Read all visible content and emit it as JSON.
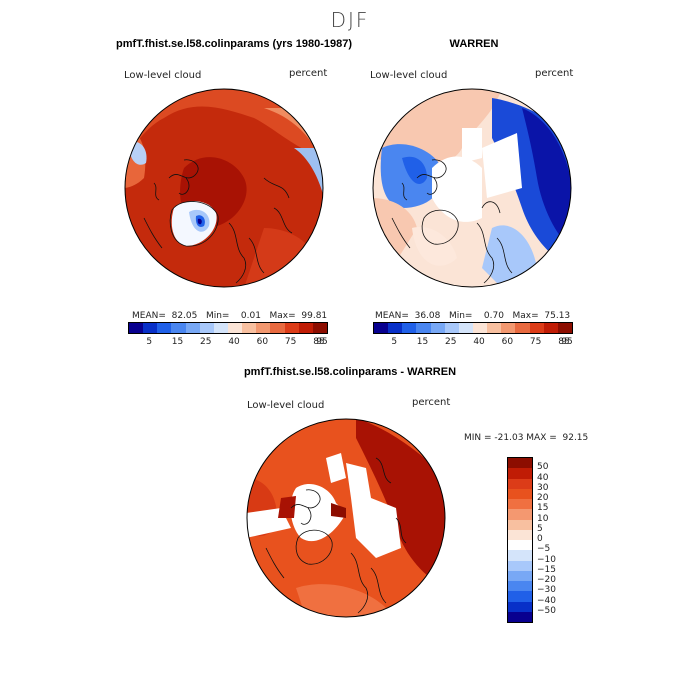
{
  "season": "DJF",
  "panels": [
    {
      "title": "pmfT.fhist.se.l58.colinparams (yrs 1980-1987)",
      "left_label": "Low-level cloud",
      "right_label": "percent",
      "stats": "MEAN=  82.05   Min=    0.01   Max=  99.81",
      "mean": 82.05,
      "min": 0.01,
      "max": 99.81,
      "colorbar_ticks": [
        "5",
        "15",
        "25",
        "40",
        "60",
        "75",
        "85",
        "95"
      ],
      "colors": [
        "#08008f",
        "#0830c8",
        "#2060e8",
        "#4a86f0",
        "#78a8f5",
        "#a8c8fa",
        "#d4e4fa",
        "#fbe4d6",
        "#f8c0a0",
        "#f29870",
        "#e86a40",
        "#dc3c18",
        "#c01c05",
        "#8c0d00"
      ]
    },
    {
      "title": "WARREN",
      "left_label": "Low-level cloud",
      "right_label": "percent",
      "stats": "MEAN=  36.08   Min=    0.70   Max=  75.13",
      "mean": 36.08,
      "min": 0.7,
      "max": 75.13,
      "colorbar_ticks": [
        "5",
        "15",
        "25",
        "40",
        "60",
        "75",
        "85",
        "95"
      ],
      "colors": [
        "#08008f",
        "#0830c8",
        "#2060e8",
        "#4a86f0",
        "#78a8f5",
        "#a8c8fa",
        "#d4e4fa",
        "#fbe4d6",
        "#f8c0a0",
        "#f29870",
        "#e86a40",
        "#dc3c18",
        "#c01c05",
        "#8c0d00"
      ]
    },
    {
      "title": "pmfT.fhist.se.l58.colinparams - WARREN",
      "left_label": "Low-level cloud",
      "right_label": "percent",
      "stats": "MIN = -21.03 MAX =  92.15",
      "min": -21.03,
      "max": 92.15,
      "colorbar_ticks": [
        "50",
        "40",
        "30",
        "20",
        "15",
        "10",
        "5",
        "0",
        "−5",
        "−10",
        "−15",
        "−20",
        "−30",
        "−40",
        "−50"
      ],
      "colors": [
        "#8c0d00",
        "#c01c05",
        "#dc3c18",
        "#e8521e",
        "#f07040",
        "#f49870",
        "#f8c0a0",
        "#fbe4d6",
        "#ffffff",
        "#d4e4fa",
        "#a8c8fa",
        "#78a8f5",
        "#4a86f0",
        "#2060e8",
        "#0830c8",
        "#08008f"
      ]
    }
  ]
}
